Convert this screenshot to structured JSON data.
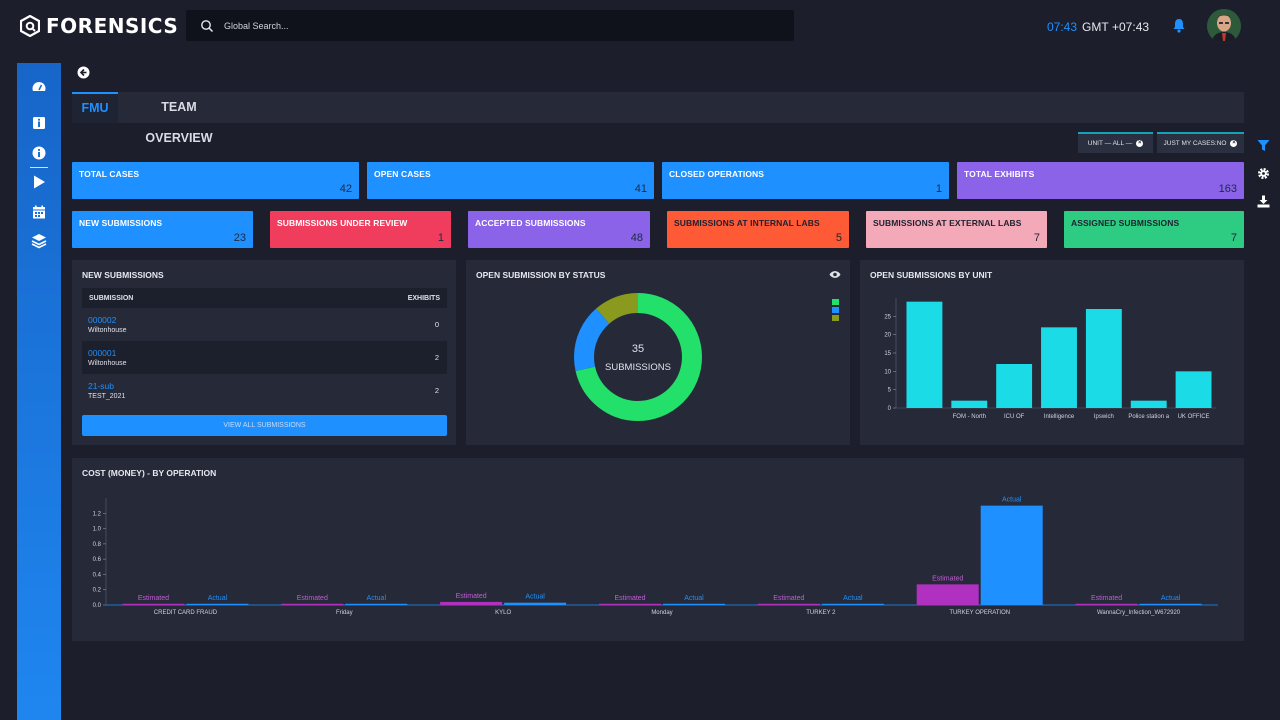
{
  "app": {
    "brand": "FORENSICS"
  },
  "search": {
    "placeholder": "Global Search..."
  },
  "header": {
    "time": "07:43",
    "timezone": "GMT",
    "offset": "+07:43"
  },
  "tabs": [
    {
      "label": "FMU"
    },
    {
      "label": "TEAM OVERVIEW"
    }
  ],
  "filters": [
    {
      "label": "UNIT — ALL —"
    },
    {
      "label": "JUST MY CASES:NO"
    }
  ],
  "stats_row1": [
    {
      "label": "TOTAL CASES",
      "value": "42",
      "color": "#1e90ff"
    },
    {
      "label": "OPEN CASES",
      "value": "41",
      "color": "#1e90ff"
    },
    {
      "label": "CLOSED OPERATIONS",
      "value": "1",
      "color": "#1e90ff"
    },
    {
      "label": "TOTAL EXHIBITS",
      "value": "163",
      "color": "#8a63e8"
    }
  ],
  "stats_row2": [
    {
      "label": "NEW SUBMISSIONS",
      "value": "23",
      "color": "#1e90ff"
    },
    {
      "label": "SUBMISSIONS UNDER REVIEW",
      "value": "1",
      "color": "#f03d5e"
    },
    {
      "label": "ACCEPTED SUBMISSIONS",
      "value": "48",
      "color": "#8a63e8"
    },
    {
      "label": "SUBMISSIONS AT INTERNAL LABS",
      "value": "5",
      "color": "#ff5a36"
    },
    {
      "label": "SUBMISSIONS AT EXTERNAL LABS",
      "value": "7",
      "color": "#f4a9b8"
    },
    {
      "label": "ASSIGNED SUBMISSIONS",
      "value": "7",
      "color": "#2ecc82"
    }
  ],
  "new_submissions": {
    "title": "NEW SUBMISSIONS",
    "col_submission": "SUBMISSION",
    "col_exhibits": "EXHIBITS",
    "rows": [
      {
        "id": "000002",
        "location": "Wiltonhouse",
        "exhibits": "0"
      },
      {
        "id": "000001",
        "location": "Wiltonhouse",
        "exhibits": "2"
      },
      {
        "id": "21-sub",
        "location": "TEST_2021",
        "exhibits": "2"
      }
    ],
    "button": "VIEW ALL SUBMISSIONS"
  },
  "open_by_status": {
    "title": "OPEN SUBMISSION BY STATUS",
    "center_value": "35",
    "center_label": "SUBMISSIONS"
  },
  "open_by_unit": {
    "title": "OPEN SUBMISSIONS BY UNIT"
  },
  "cost": {
    "title": "COST (MONEY) - BY OPERATION"
  },
  "chart_data": [
    {
      "type": "pie",
      "title": "OPEN SUBMISSION BY STATUS",
      "slices": [
        {
          "name": "green",
          "value": 25,
          "color": "#22e06a"
        },
        {
          "name": "blue",
          "value": 6,
          "color": "#1e90ff"
        },
        {
          "name": "olive",
          "value": 4,
          "color": "#8a9a1e"
        }
      ],
      "total": 35
    },
    {
      "type": "bar",
      "title": "OPEN SUBMISSIONS BY UNIT",
      "categories": [
        "",
        "FOM - North",
        "ICU OF",
        "Intelligence",
        "Ipswich",
        "Police station a",
        "UK OFFICE"
      ],
      "values": [
        29,
        2,
        12,
        22,
        27,
        2,
        10
      ],
      "yticks": [
        0,
        5,
        10,
        15,
        20,
        25
      ],
      "ylim": [
        0,
        30
      ],
      "color": "#1adbe6"
    },
    {
      "type": "bar",
      "title": "COST (MONEY) - BY OPERATION",
      "categories": [
        "CREDIT CARD FRAUD",
        "Friday",
        "KYLO",
        "Monday",
        "TURKEY 2",
        "TURKEY OPERATION",
        "WannaCry_Infection_W672920"
      ],
      "series": [
        {
          "name": "Estimated",
          "color": "#b030c0",
          "values": [
            0.0,
            0.0,
            0.04,
            0.0,
            0.0,
            0.27,
            0.0
          ]
        },
        {
          "name": "Actual",
          "color": "#1e90ff",
          "values": [
            0.0,
            0.0,
            0.03,
            0.0,
            0.0,
            1.3,
            0.0
          ]
        }
      ],
      "yticks": [
        "0.0",
        "0.2",
        "0.4",
        "0.6",
        "0.8",
        "1.0",
        "1.2"
      ],
      "ylim": [
        0,
        1.4
      ]
    }
  ]
}
